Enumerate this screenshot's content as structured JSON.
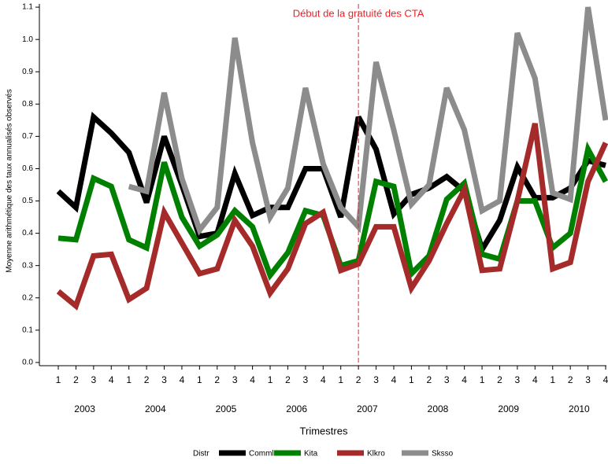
{
  "chart_data": {
    "type": "line",
    "title": "Début de la gratuité des CTA",
    "xlabel": "Trimestres",
    "ylabel": "Moyenne arithmétique des taux annualisés observés",
    "legend_title": "Distr",
    "categories": [
      "1",
      "2",
      "3",
      "4",
      "1",
      "2",
      "3",
      "4",
      "1",
      "2",
      "3",
      "4",
      "1",
      "2",
      "3",
      "4",
      "1",
      "2",
      "3",
      "4",
      "1",
      "2",
      "3",
      "4",
      "1",
      "2",
      "3",
      "4",
      "1",
      "2",
      "3",
      "4"
    ],
    "years": [
      "2003",
      "2004",
      "2005",
      "2006",
      "2007",
      "2008",
      "2009",
      "2010"
    ],
    "vline": {
      "year": "2007",
      "quarter": "2",
      "color": "#e8242a"
    },
    "ylim": [
      -0.01,
      1.11
    ],
    "yticks": [
      {
        "value": 0,
        "label": "0.0"
      },
      0.1,
      0.2,
      0.3,
      0.4,
      0.5,
      0.6,
      0.7,
      0.8,
      0.9,
      {
        "value": 1,
        "label": "1.0"
      },
      1.1
    ],
    "series": [
      {
        "name": "Comml",
        "color": "#000000",
        "values": [
          0.53,
          0.48,
          0.76,
          0.71,
          0.65,
          0.495,
          0.7,
          0.55,
          0.39,
          0.4,
          0.585,
          0.455,
          0.48,
          0.48,
          0.6,
          0.6,
          0.45,
          0.76,
          0.66,
          0.46,
          0.52,
          0.54,
          0.575,
          0.53,
          0.35,
          0.44,
          0.605,
          0.51,
          0.51,
          0.54,
          0.625,
          0.61
        ]
      },
      {
        "name": "Kita",
        "color": "#008000",
        "values": [
          0.385,
          0.38,
          0.57,
          0.545,
          0.38,
          0.355,
          0.62,
          0.45,
          0.36,
          0.395,
          0.47,
          0.42,
          0.27,
          0.34,
          0.47,
          0.455,
          0.3,
          0.315,
          0.56,
          0.545,
          0.275,
          0.33,
          0.505,
          0.555,
          0.335,
          0.32,
          0.5,
          0.5,
          0.355,
          0.4,
          0.66,
          0.56
        ]
      },
      {
        "name": "Klkro",
        "color": "#a52a2a",
        "values": [
          0.22,
          0.175,
          0.33,
          0.335,
          0.195,
          0.23,
          0.465,
          0.37,
          0.275,
          0.29,
          0.44,
          0.36,
          0.215,
          0.29,
          0.43,
          0.465,
          0.285,
          0.305,
          0.42,
          0.42,
          0.23,
          0.315,
          0.43,
          0.535,
          0.285,
          0.29,
          0.5,
          0.74,
          0.29,
          0.31,
          0.56,
          0.68
        ]
      },
      {
        "name": "Sksso",
        "color": "#8c8c8c",
        "values": [
          null,
          null,
          null,
          null,
          0.545,
          0.53,
          0.835,
          0.57,
          0.41,
          0.48,
          1.005,
          0.68,
          0.45,
          0.54,
          0.85,
          0.615,
          0.48,
          0.42,
          0.93,
          0.72,
          0.49,
          0.55,
          0.85,
          0.72,
          0.47,
          0.5,
          1.02,
          0.88,
          0.525,
          0.505,
          1.1,
          0.75
        ]
      }
    ]
  }
}
